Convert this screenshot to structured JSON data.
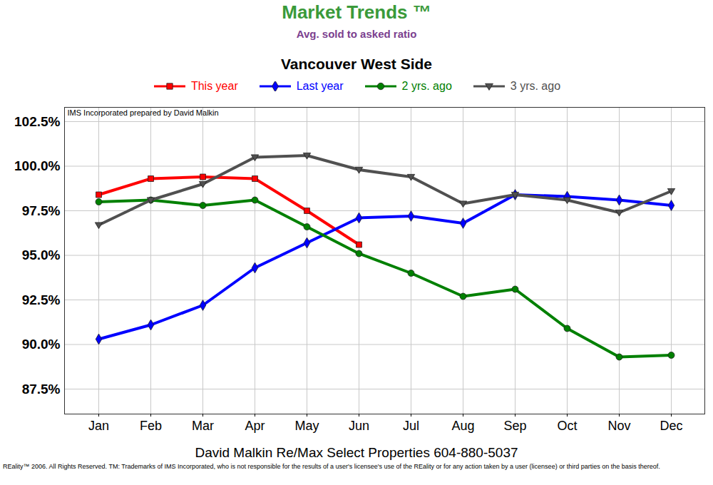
{
  "chart_data": {
    "type": "line",
    "title": "Market Trends ™",
    "subtitle": "Avg. sold to asked ratio",
    "chart_title": "Vancouver West Side",
    "annotations": [
      "IMS Incorporated prepared by David Malkin"
    ],
    "caption": "David Malkin Re/Max Select Properties 604-880-5037",
    "footnote": "REality™ 2006. All Rights Reserved. TM: Trademarks of IMS Incorporated, who is not responsible for the results of a user's licensee's use of the REality or for any action taken by a user (licensee) or third parties on the basis thereof.",
    "categories": [
      "Jan",
      "Feb",
      "Mar",
      "Apr",
      "May",
      "Jun",
      "Jul",
      "Aug",
      "Sep",
      "Oct",
      "Nov",
      "Dec"
    ],
    "series": [
      {
        "name": "This year",
        "color": "#ff0000",
        "marker": "square",
        "values": [
          98.4,
          99.3,
          99.4,
          99.3,
          97.5,
          95.6,
          null,
          null,
          null,
          null,
          null,
          null
        ]
      },
      {
        "name": "Last year",
        "color": "#0000ff",
        "marker": "diamond",
        "values": [
          90.3,
          91.1,
          92.2,
          94.3,
          95.7,
          97.1,
          97.2,
          96.8,
          98.4,
          98.3,
          98.1,
          97.8
        ]
      },
      {
        "name": "2 yrs. ago",
        "color": "#008000",
        "marker": "circle",
        "values": [
          98.0,
          98.1,
          97.8,
          98.1,
          96.6,
          95.1,
          94.0,
          92.7,
          93.1,
          90.9,
          89.3,
          89.4
        ]
      },
      {
        "name": "3 yrs. ago",
        "color": "#505050",
        "marker": "triangle-down",
        "values": [
          96.7,
          98.1,
          99.0,
          100.5,
          100.6,
          99.8,
          99.4,
          97.9,
          98.4,
          98.1,
          97.4,
          98.6
        ]
      }
    ],
    "ylim": [
      86.1,
      103.3
    ],
    "yticks": [
      {
        "value": 87.5,
        "label": "87.5%"
      },
      {
        "value": 90,
        "label": "90.0%"
      },
      {
        "value": 92.5,
        "label": "92.5%"
      },
      {
        "value": 95,
        "label": "95.0%"
      },
      {
        "value": 97.5,
        "label": "97.5%"
      },
      {
        "value": 100,
        "label": "100.0%"
      },
      {
        "value": 102.5,
        "label": "102.5%"
      }
    ],
    "grid": true,
    "legend": "top"
  }
}
